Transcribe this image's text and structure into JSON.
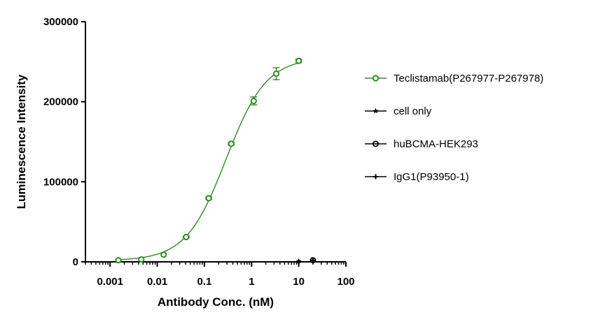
{
  "chart_data": {
    "type": "scatter",
    "xlabel": "Antibody Conc. (nM)",
    "ylabel": "Luminescence Intensity",
    "x_scale": "log",
    "xlim": [
      0.0003,
      100
    ],
    "ylim": [
      0,
      300000
    ],
    "x_ticks": [
      0.001,
      0.01,
      0.1,
      1,
      10,
      100
    ],
    "x_tick_labels": [
      "0.001",
      "0.01",
      "0.1",
      "1",
      "10",
      "100"
    ],
    "y_ticks": [
      0,
      100000,
      200000,
      300000
    ],
    "y_tick_labels": [
      "0",
      "100000",
      "200000",
      "300000"
    ],
    "grid": false,
    "legend_position": "right",
    "series": [
      {
        "name": "Teclistamab(P267977-P267978)",
        "color": "#2e8b24",
        "marker": "open-circle",
        "fit_curve": true,
        "x": [
          0.0015,
          0.0046,
          0.0137,
          0.041,
          0.123,
          0.37,
          1.11,
          3.33,
          10
        ],
        "y": [
          2000,
          3000,
          9000,
          31000,
          79500,
          147500,
          201000,
          235000,
          251000
        ],
        "error": [
          0,
          0,
          0,
          1000,
          1500,
          1500,
          5000,
          7500,
          2000
        ]
      },
      {
        "name": "cell only",
        "color": "#000000",
        "marker": "star",
        "fit_curve": false,
        "x": [
          10
        ],
        "y": [
          800
        ],
        "error": [
          0
        ]
      },
      {
        "name": "huBCMA-HEK293",
        "color": "#000000",
        "marker": "crossed-circle",
        "fit_curve": false,
        "x": [
          20
        ],
        "y": [
          2000
        ],
        "error": [
          0
        ]
      },
      {
        "name": "IgG1(P93950-1)",
        "color": "#000000",
        "marker": "plus",
        "fit_curve": false,
        "x": [
          20
        ],
        "y": [
          1500
        ],
        "error": [
          0
        ]
      }
    ]
  }
}
